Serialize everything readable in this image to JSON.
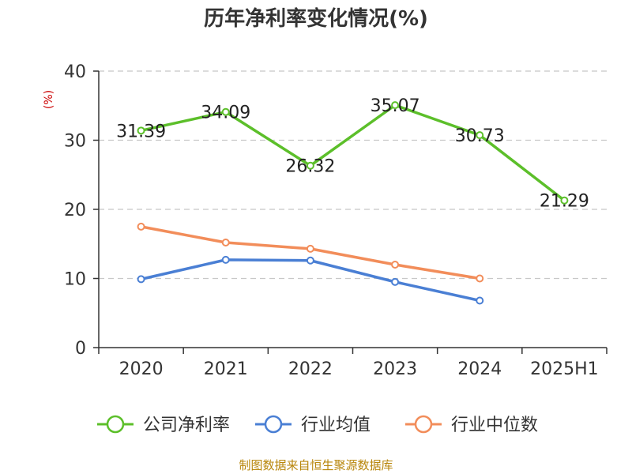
{
  "chart_data": {
    "type": "line",
    "title": "历年净利率变化情况(%)",
    "ylabel": "(%)",
    "categories": [
      "2020",
      "2021",
      "2022",
      "2023",
      "2024",
      "2025H1"
    ],
    "ylim": [
      0,
      40
    ],
    "yticks": [
      "0",
      "10",
      "20",
      "30",
      "40"
    ],
    "grid": true,
    "legend_position": "bottom",
    "series": [
      {
        "name": "公司净利率",
        "color": "#5cbf2a",
        "values": [
          31.39,
          34.09,
          26.32,
          35.07,
          30.73,
          21.29
        ],
        "labels": [
          "31.39",
          "34.09",
          "26.32",
          "35.07",
          "30.73",
          "21.29"
        ]
      },
      {
        "name": "行业均值",
        "color": "#4a7fd4",
        "values": [
          9.9,
          12.7,
          12.6,
          9.5,
          6.8,
          null
        ]
      },
      {
        "name": "行业中位数",
        "color": "#f28d5a",
        "values": [
          17.5,
          15.2,
          14.3,
          12.0,
          10.0,
          null
        ]
      }
    ]
  },
  "source": "制图数据来自恒生聚源数据库"
}
